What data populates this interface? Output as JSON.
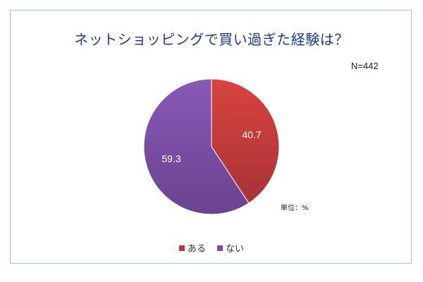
{
  "chart_data": {
    "type": "pie",
    "title": "ネットショッピングで買い過ぎた経験は？",
    "sample_size": "N=442",
    "unit_label": "単位：%",
    "slices": [
      {
        "label": "ある",
        "value": 40.7,
        "value_label": "40.7",
        "color": "#c0393b"
      },
      {
        "label": "ない",
        "value": 59.3,
        "value_label": "59.3",
        "color": "#7b4fa3"
      }
    ],
    "legend_position": "bottom"
  }
}
